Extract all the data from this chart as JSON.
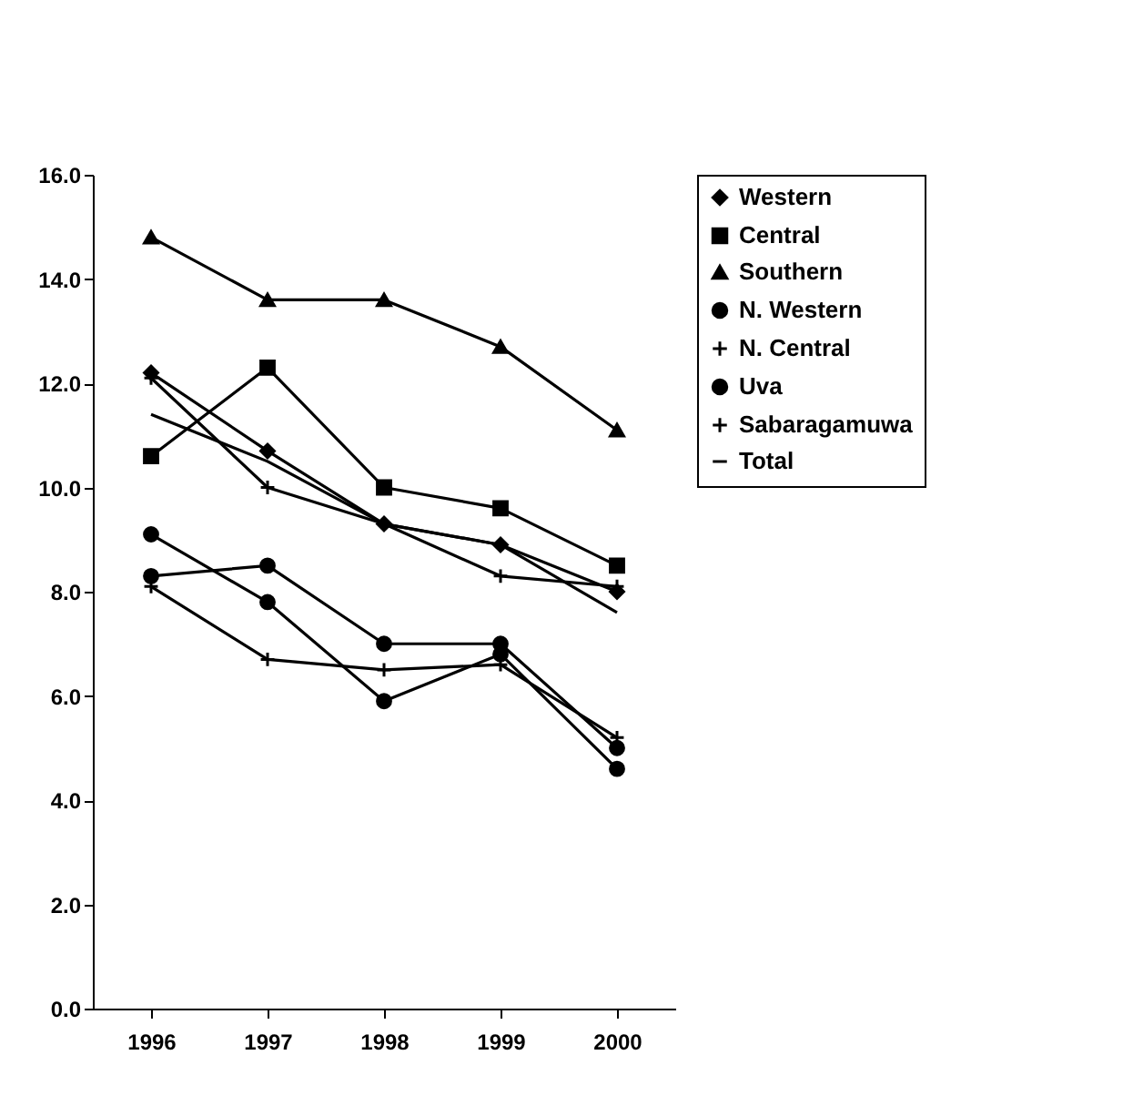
{
  "chart_data": {
    "type": "line",
    "categories": [
      "1996",
      "1997",
      "1998",
      "1999",
      "2000"
    ],
    "series": [
      {
        "name": "Western",
        "color": "#000000",
        "marker": "diamond",
        "values": [
          12.2,
          10.7,
          9.3,
          8.9,
          8.0
        ]
      },
      {
        "name": "Central",
        "color": "#000000",
        "marker": "square",
        "values": [
          10.6,
          12.3,
          10.0,
          9.6,
          8.5
        ]
      },
      {
        "name": "Southern",
        "color": "#000000",
        "marker": "triangle",
        "values": [
          14.8,
          13.6,
          13.6,
          12.7,
          11.1
        ]
      },
      {
        "name": "N. Western",
        "color": "#000000",
        "marker": "circle",
        "values": [
          8.3,
          8.5,
          7.0,
          7.0,
          5.0
        ]
      },
      {
        "name": "N. Central",
        "color": "#000000",
        "marker": "cross",
        "values": [
          8.1,
          6.7,
          6.5,
          6.6,
          5.2
        ]
      },
      {
        "name": "Uva",
        "color": "#000000",
        "marker": "circle",
        "values": [
          9.1,
          7.8,
          5.9,
          6.8,
          4.6
        ]
      },
      {
        "name": "Sabaragamuwa",
        "color": "#000000",
        "marker": "cross",
        "values": [
          12.1,
          10.0,
          9.3,
          8.3,
          8.1
        ]
      },
      {
        "name": "Total",
        "color": "#000000",
        "marker": "none",
        "values": [
          11.4,
          10.5,
          9.3,
          8.9,
          7.6
        ]
      }
    ],
    "ylim": [
      0,
      16
    ],
    "yticks": [
      {
        "value": 0,
        "label": "0.0"
      },
      {
        "value": 2,
        "label": "2.0"
      },
      {
        "value": 4,
        "label": "4.0"
      },
      {
        "value": 6,
        "label": "6.0"
      },
      {
        "value": 8,
        "label": "8.0"
      },
      {
        "value": 10,
        "label": "10.0"
      },
      {
        "value": 12,
        "label": "12.0"
      },
      {
        "value": 14,
        "label": "14.0"
      },
      {
        "value": 16,
        "label": "16.0"
      }
    ],
    "grid": false,
    "legend": "right"
  }
}
